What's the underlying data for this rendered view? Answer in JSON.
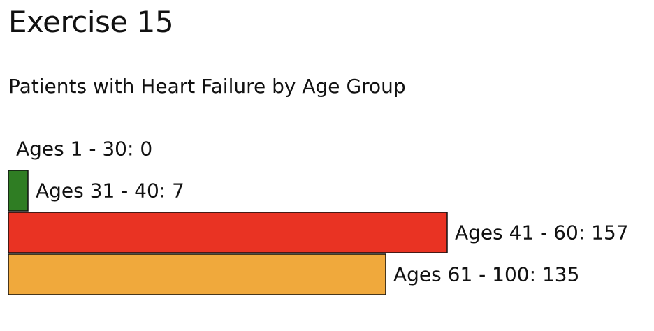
{
  "page": {
    "title": "Exercise 15"
  },
  "chart_data": {
    "type": "bar",
    "orientation": "horizontal",
    "title": "Patients with Heart Failure by Age Group",
    "xlabel": "",
    "ylabel": "",
    "xlim": [
      0,
      157
    ],
    "grid": false,
    "legend": "none",
    "categories": [
      "Ages 1 - 30",
      "Ages 31 - 40",
      "Ages 41 - 60",
      "Ages 61 - 100"
    ],
    "values": [
      0,
      7,
      157,
      135
    ],
    "labels": [
      "Ages 1 - 30: 0",
      "Ages 31 - 40: 7",
      "Ages 41 - 60: 157",
      "Ages 61 - 100: 135"
    ],
    "colors": [
      "#ffffff",
      "#2f7d23",
      "#e93323",
      "#f0a93c"
    ]
  }
}
